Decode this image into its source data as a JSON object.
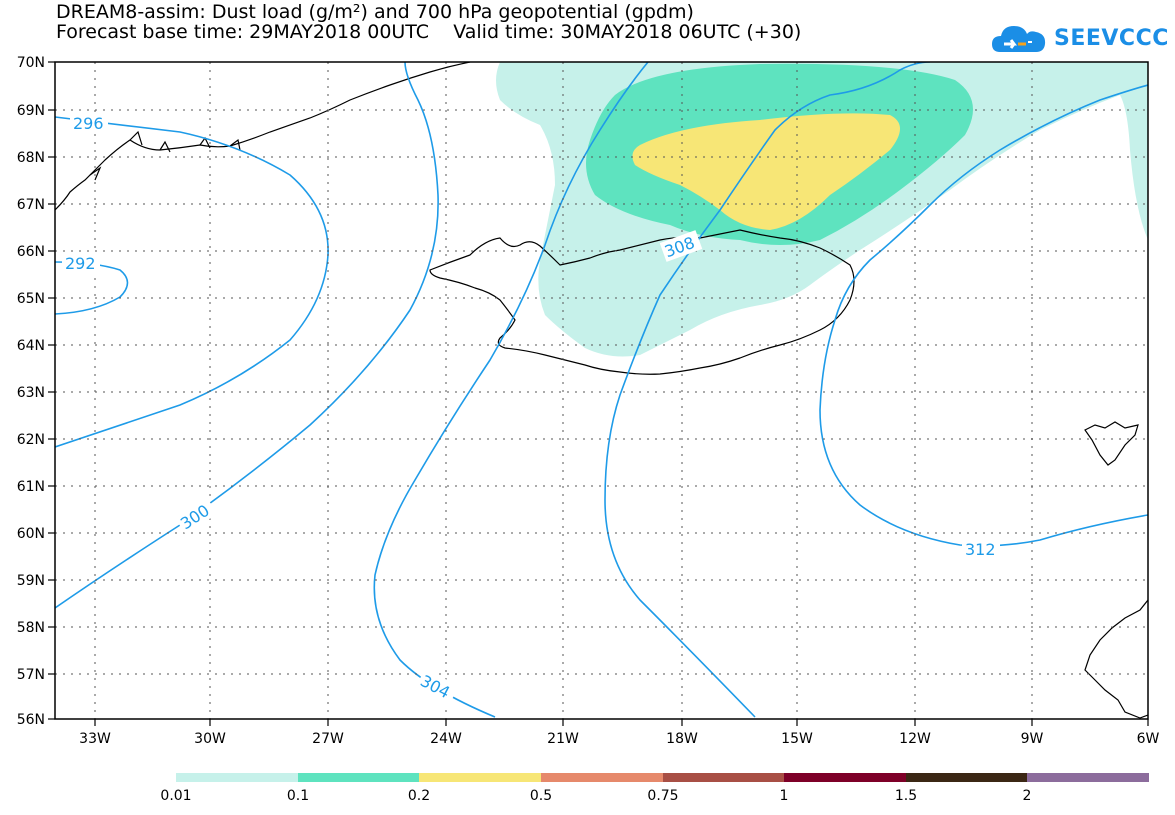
{
  "header": {
    "title_line1": "DREAM8-assim: Dust load (g/m²) and 700 hPa geopotential (gpdm)",
    "title_line2": "Forecast base time: 29MAY2018 00UTC    Valid time: 30MAY2018 06UTC (+30)"
  },
  "logo": {
    "text": "SEEVCCC",
    "icon": "cloud-logo-icon"
  },
  "map": {
    "lat_labels": [
      "70N",
      "69N",
      "68N",
      "67N",
      "66N",
      "65N",
      "64N",
      "63N",
      "62N",
      "61N",
      "60N",
      "59N",
      "58N",
      "57N",
      "56N"
    ],
    "lon_labels": [
      "33W",
      "30W",
      "27W",
      "24W",
      "21W",
      "18W",
      "15W",
      "12W",
      "9W",
      "6W"
    ],
    "contour_labels": [
      "296",
      "292",
      "300",
      "304",
      "308",
      "312"
    ],
    "contour_color": "#1e9be8"
  },
  "colorbar": {
    "labels": [
      "0.01",
      "0.1",
      "0.2",
      "0.5",
      "0.75",
      "1",
      "1.5",
      "2"
    ],
    "colors": [
      "#c6f1ea",
      "#5ee3bf",
      "#f7e676",
      "#e6896b",
      "#a84f45",
      "#7e0028",
      "#3b2714",
      "#8c6c9c"
    ]
  },
  "colors": {
    "dust_001": "#c6f1ea",
    "dust_01": "#5ee3bf",
    "dust_02": "#f7e676"
  }
}
